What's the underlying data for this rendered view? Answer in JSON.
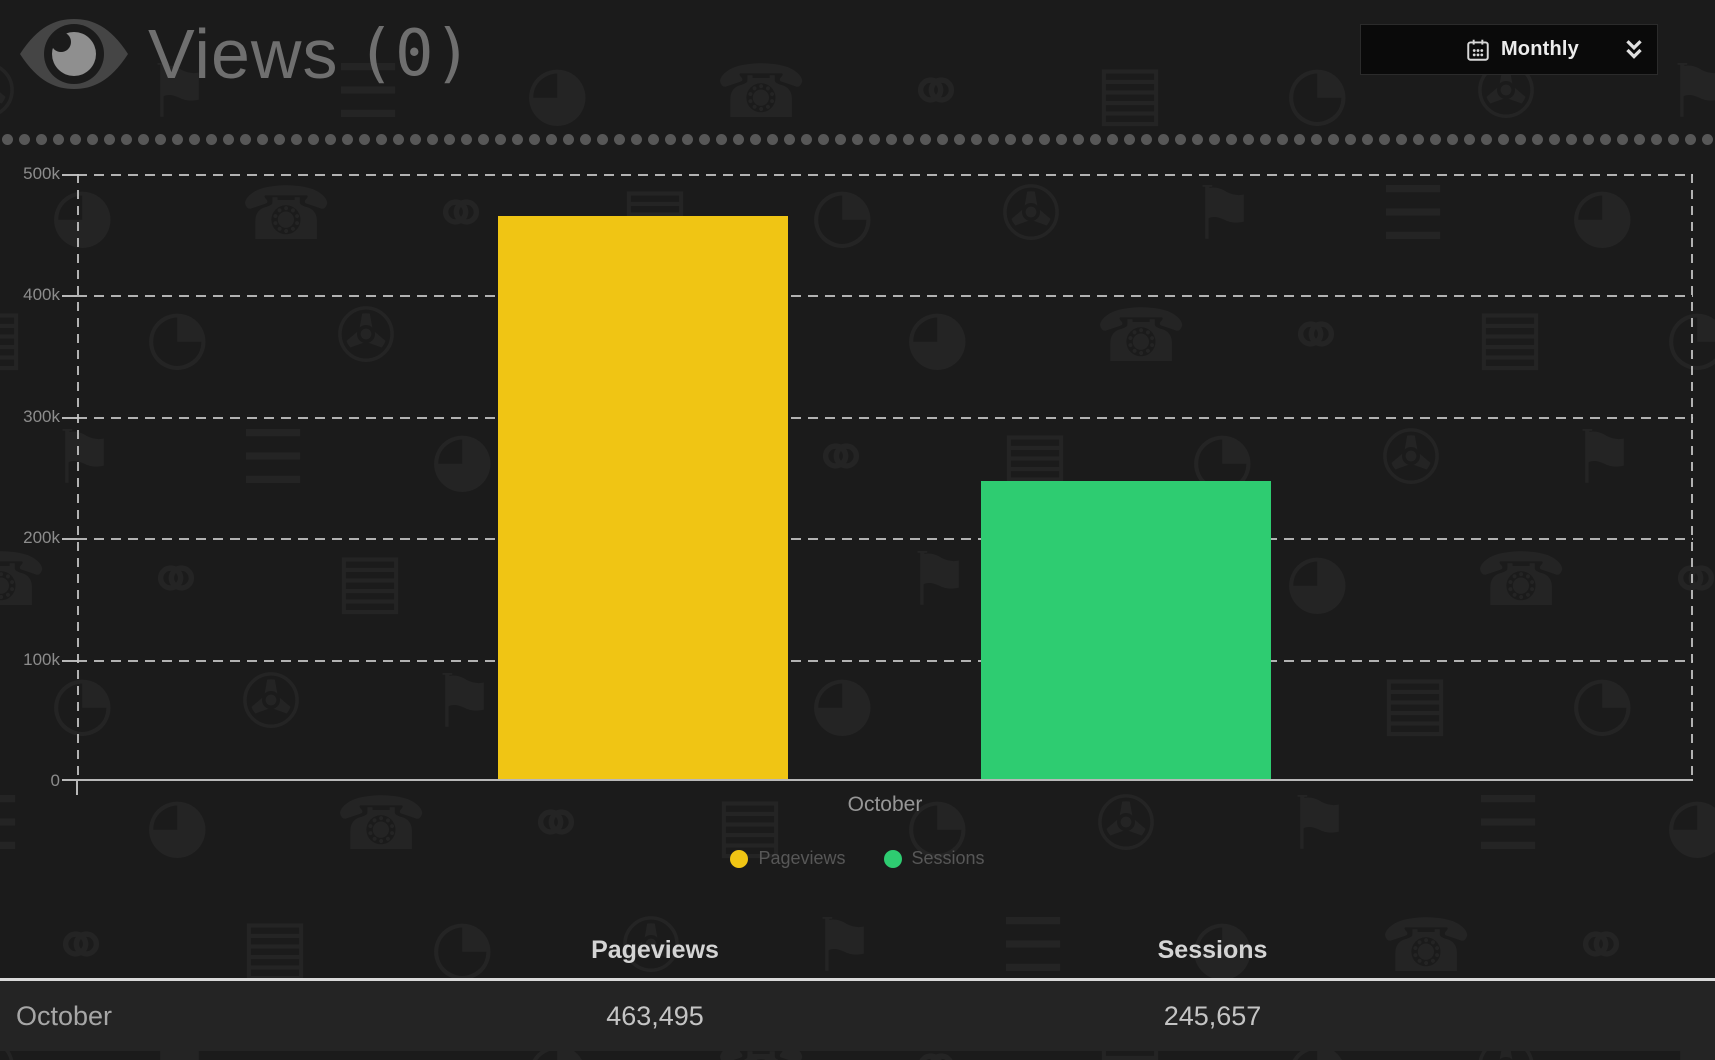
{
  "header": {
    "title": "Views",
    "count": "(0)"
  },
  "period_selector": {
    "label": "Monthly"
  },
  "chart_data": {
    "type": "bar",
    "categories": [
      "October"
    ],
    "series": [
      {
        "name": "Pageviews",
        "color": "#f0c514",
        "values": [
          463495
        ]
      },
      {
        "name": "Sessions",
        "color": "#2ecc71",
        "values": [
          245657
        ]
      }
    ],
    "ylim": [
      0,
      500000
    ],
    "yticks": [
      {
        "value": 500000,
        "label": "500k"
      },
      {
        "value": 400000,
        "label": "400k"
      },
      {
        "value": 300000,
        "label": "300k"
      },
      {
        "value": 200000,
        "label": "200k"
      },
      {
        "value": 100000,
        "label": "100k"
      },
      {
        "value": 0,
        "label": "0"
      }
    ],
    "xlabel": "",
    "ylabel": "",
    "grid": "horizontal-dashed",
    "legend_position": "bottom-center"
  },
  "legend": [
    {
      "label": "Pageviews",
      "color": "#f0c514"
    },
    {
      "label": "Sessions",
      "color": "#2ecc71"
    }
  ],
  "table": {
    "columns": [
      "",
      "Pageviews",
      "Sessions"
    ],
    "rows": [
      {
        "label": "October",
        "values": [
          "463,495",
          "245,657"
        ]
      }
    ]
  },
  "colors": {
    "background": "#1b1b1b",
    "row_background": "#242424",
    "accent_yellow": "#f0c514",
    "accent_green": "#2ecc71",
    "grid_line": "#c6c6c6",
    "divider_dot": "#575757"
  }
}
